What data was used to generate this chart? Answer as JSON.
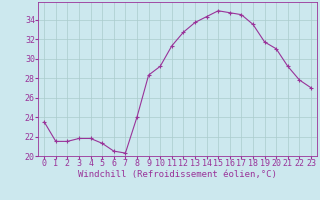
{
  "x": [
    0,
    1,
    2,
    3,
    4,
    5,
    6,
    7,
    8,
    9,
    10,
    11,
    12,
    13,
    14,
    15,
    16,
    17,
    18,
    19,
    20,
    21,
    22,
    23
  ],
  "y": [
    23.5,
    21.5,
    21.5,
    21.8,
    21.8,
    21.3,
    20.5,
    20.3,
    24.0,
    28.3,
    29.2,
    31.3,
    32.7,
    33.7,
    34.3,
    34.9,
    34.7,
    34.5,
    33.5,
    31.7,
    31.0,
    29.2,
    27.8,
    27.0
  ],
  "line_color": "#993399",
  "marker": "+",
  "bg_color": "#cce8ee",
  "grid_color": "#aacccc",
  "xlabel": "Windchill (Refroidissement éolien,°C)",
  "xlabel_color": "#993399",
  "tick_color": "#993399",
  "ylim": [
    20,
    35
  ],
  "yticks": [
    20,
    22,
    24,
    26,
    28,
    30,
    32,
    34
  ],
  "xticks": [
    0,
    1,
    2,
    3,
    4,
    5,
    6,
    7,
    8,
    9,
    10,
    11,
    12,
    13,
    14,
    15,
    16,
    17,
    18,
    19,
    20,
    21,
    22,
    23
  ],
  "spine_color": "#993399",
  "font_size": 6.0,
  "xlabel_font_size": 6.5
}
